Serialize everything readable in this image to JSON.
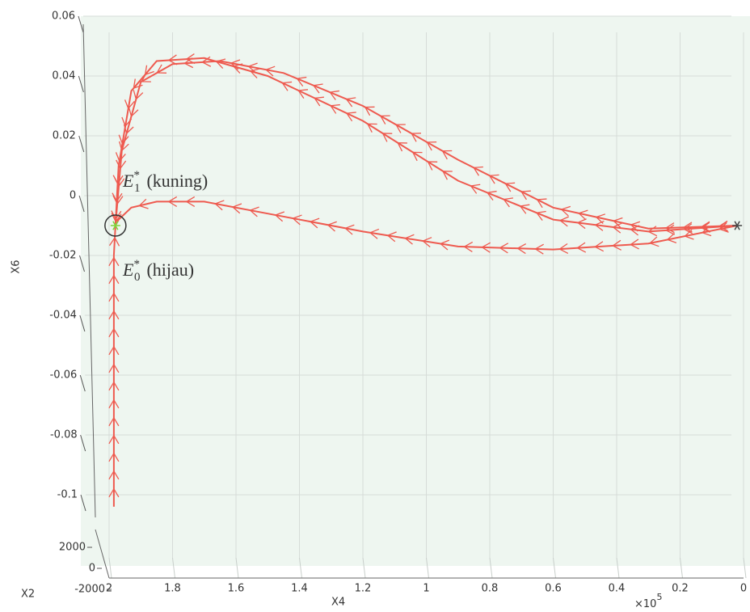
{
  "chart_data": {
    "type": "line",
    "xlabel": "X4",
    "ylabel": "X6",
    "zlabel": "X2",
    "x_multiplier": "×10",
    "x_exponent": "5",
    "xlim": [
      2,
      0
    ],
    "ylim": [
      -0.1,
      0.06
    ],
    "zlim": [
      -2000,
      2000
    ],
    "xticks": [
      2,
      1.8,
      1.6,
      1.4,
      1.2,
      1,
      0.8,
      0.6,
      0.4,
      0.2,
      0
    ],
    "yticks": [
      0.06,
      0.04,
      0.02,
      0,
      -0.02,
      -0.04,
      -0.06,
      -0.08,
      -0.1
    ],
    "zticks": [
      2000,
      0,
      -2000
    ],
    "grid": true,
    "series": [
      {
        "color": "#ee5a4f",
        "x": [
          0.02,
          0.3,
          0.6,
          0.9,
          1.2,
          1.5,
          1.7,
          1.85,
          1.93,
          1.97,
          1.98
        ],
        "y": [
          -0.01,
          -0.012,
          -0.008,
          0.005,
          0.025,
          0.04,
          0.046,
          0.045,
          0.035,
          0.01,
          -0.01
        ]
      },
      {
        "color": "#ee5a4f",
        "x": [
          0.02,
          0.3,
          0.6,
          0.9,
          1.2,
          1.45,
          1.65,
          1.8,
          1.9,
          1.96,
          1.98
        ],
        "y": [
          -0.01,
          -0.011,
          -0.004,
          0.012,
          0.03,
          0.041,
          0.045,
          0.044,
          0.038,
          0.015,
          -0.01
        ]
      },
      {
        "color": "#ee5a4f",
        "x": [
          0.02,
          0.3,
          0.6,
          0.9,
          1.2,
          1.5,
          1.7,
          1.85,
          1.93,
          1.97,
          1.98
        ],
        "y": [
          -0.01,
          -0.016,
          -0.018,
          -0.017,
          -0.012,
          -0.006,
          -0.002,
          -0.002,
          -0.004,
          -0.008,
          -0.01
        ]
      },
      {
        "color": "#ee5a4f",
        "x": [
          1.985,
          1.985,
          1.98
        ],
        "y": [
          -0.104,
          -0.02,
          -0.01
        ]
      }
    ],
    "points": [
      {
        "x": 0.02,
        "y": -0.01,
        "color": "#444444"
      },
      {
        "x": 1.98,
        "y": -0.01,
        "color": "#7fd43a"
      }
    ],
    "annotations": [
      {
        "symbol": "E",
        "subscript": "1",
        "superscript": "*",
        "text": "(kuning)"
      },
      {
        "symbol": "E",
        "subscript": "0",
        "superscript": "*",
        "text": "(hijau)"
      }
    ]
  }
}
